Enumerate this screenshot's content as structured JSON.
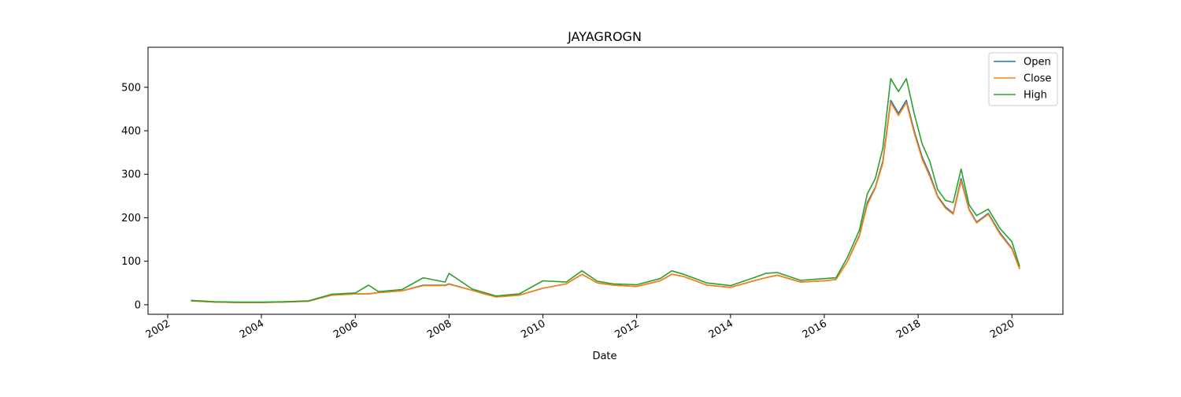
{
  "chart_data": {
    "type": "line",
    "title": "JAYAGROGN",
    "xlabel": "Date",
    "ylabel": "",
    "x_ticks": [
      "2002",
      "2004",
      "2006",
      "2008",
      "2010",
      "2012",
      "2014",
      "2016",
      "2018",
      "2020"
    ],
    "y_ticks": [
      "0",
      "100",
      "200",
      "300",
      "400",
      "500"
    ],
    "xlim": [
      "2001-08-01",
      "2021-02-01"
    ],
    "ylim": [
      -22,
      592
    ],
    "legend": {
      "position": "top-right"
    },
    "x": [
      "2002-07-01",
      "2003-01-01",
      "2003-07-01",
      "2004-01-01",
      "2004-07-01",
      "2005-01-01",
      "2005-07-01",
      "2006-01-01",
      "2006-04-15",
      "2006-07-01",
      "2007-01-01",
      "2007-06-15",
      "2007-12-01",
      "2008-01-01",
      "2008-07-01",
      "2008-10-01",
      "2009-01-01",
      "2009-07-01",
      "2010-01-01",
      "2010-07-01",
      "2010-11-01",
      "2011-03-01",
      "2011-07-01",
      "2012-01-01",
      "2012-07-01",
      "2012-10-01",
      "2013-01-01",
      "2013-07-01",
      "2014-01-01",
      "2014-07-01",
      "2014-10-01",
      "2015-01-01",
      "2015-07-01",
      "2016-01-01",
      "2016-04-01",
      "2016-07-01",
      "2016-10-01",
      "2016-12-01",
      "2017-02-01",
      "2017-04-01",
      "2017-06-01",
      "2017-08-01",
      "2017-10-01",
      "2017-12-01",
      "2018-02-01",
      "2018-04-01",
      "2018-06-01",
      "2018-08-01",
      "2018-10-01",
      "2018-12-01",
      "2019-02-01",
      "2019-04-01",
      "2019-07-01",
      "2019-10-01",
      "2020-01-01",
      "2020-03-01"
    ],
    "series": [
      {
        "name": "Open",
        "color": "#1f77b4",
        "values": [
          9,
          6,
          5,
          5,
          6,
          8,
          22,
          25,
          25,
          28,
          32,
          45,
          45,
          48,
          33,
          25,
          18,
          22,
          38,
          48,
          70,
          50,
          45,
          42,
          55,
          70,
          65,
          45,
          40,
          55,
          62,
          68,
          52,
          55,
          58,
          100,
          160,
          235,
          270,
          330,
          470,
          440,
          470,
          400,
          340,
          300,
          250,
          225,
          210,
          290,
          220,
          190,
          210,
          165,
          130,
          84
        ]
      },
      {
        "name": "Close",
        "color": "#ff7f0e",
        "values": [
          9,
          6,
          5,
          5,
          6,
          8,
          22,
          25,
          25,
          28,
          32,
          44,
          44,
          47,
          33,
          25,
          18,
          22,
          38,
          48,
          70,
          50,
          45,
          42,
          55,
          70,
          65,
          45,
          40,
          55,
          62,
          68,
          52,
          55,
          58,
          100,
          158,
          230,
          268,
          325,
          465,
          435,
          465,
          395,
          335,
          295,
          248,
          222,
          208,
          285,
          218,
          188,
          208,
          162,
          128,
          82
        ]
      },
      {
        "name": "High",
        "color": "#2ca02c",
        "values": [
          10,
          7,
          6,
          6,
          7,
          9,
          24,
          27,
          45,
          30,
          35,
          62,
          52,
          72,
          36,
          28,
          20,
          25,
          55,
          52,
          78,
          54,
          48,
          46,
          60,
          78,
          70,
          50,
          44,
          62,
          72,
          74,
          56,
          60,
          62,
          110,
          172,
          255,
          290,
          360,
          520,
          490,
          520,
          440,
          370,
          330,
          265,
          240,
          235,
          312,
          230,
          205,
          220,
          175,
          145,
          88
        ]
      }
    ]
  }
}
